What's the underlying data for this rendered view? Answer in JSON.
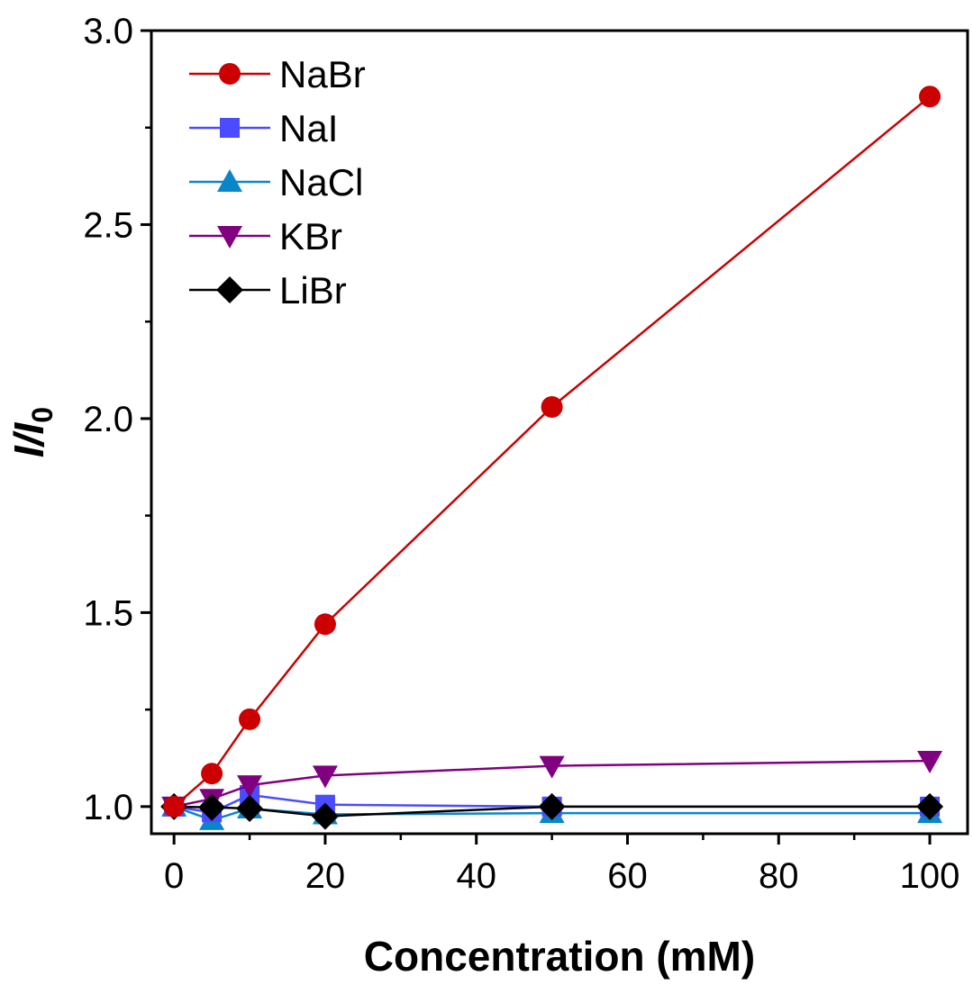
{
  "chart_data": {
    "type": "line",
    "title": "",
    "xlabel": "Concentration (mM)",
    "ylabel": {
      "main": "I/I",
      "sub": "0"
    },
    "xlim": [
      -3,
      105
    ],
    "ylim": [
      0.93,
      3.0
    ],
    "xticks": [
      0,
      20,
      40,
      60,
      80,
      100
    ],
    "xtick_labels": [
      "0",
      "20",
      "40",
      "60",
      "80",
      "100"
    ],
    "yticks": [
      1.0,
      1.5,
      2.0,
      2.5,
      3.0
    ],
    "ytick_labels": [
      "1.0",
      "1.5",
      "2.0",
      "2.5",
      "3.0"
    ],
    "legend_position": "top-left",
    "x": [
      0,
      5,
      10,
      20,
      50,
      100
    ],
    "series": [
      {
        "name": "NaBr",
        "color": "#cc0000",
        "marker": "circle",
        "values": [
          1.0,
          1.085,
          1.225,
          1.47,
          2.03,
          2.83
        ]
      },
      {
        "name": "NaI",
        "color": "#4b4bff",
        "marker": "square",
        "values": [
          1.0,
          0.985,
          1.03,
          1.005,
          1.0,
          1.0
        ]
      },
      {
        "name": "NaCl",
        "color": "#0a86c8",
        "marker": "triangle-up",
        "values": [
          1.0,
          0.965,
          0.995,
          0.98,
          0.983,
          0.983
        ]
      },
      {
        "name": "KBr",
        "color": "#800080",
        "marker": "triangle-down",
        "values": [
          1.0,
          1.02,
          1.055,
          1.08,
          1.105,
          1.118
        ]
      },
      {
        "name": "LiBr",
        "color": "#000000",
        "marker": "diamond",
        "values": [
          1.0,
          0.998,
          0.995,
          0.975,
          1.0,
          1.0
        ]
      }
    ]
  }
}
